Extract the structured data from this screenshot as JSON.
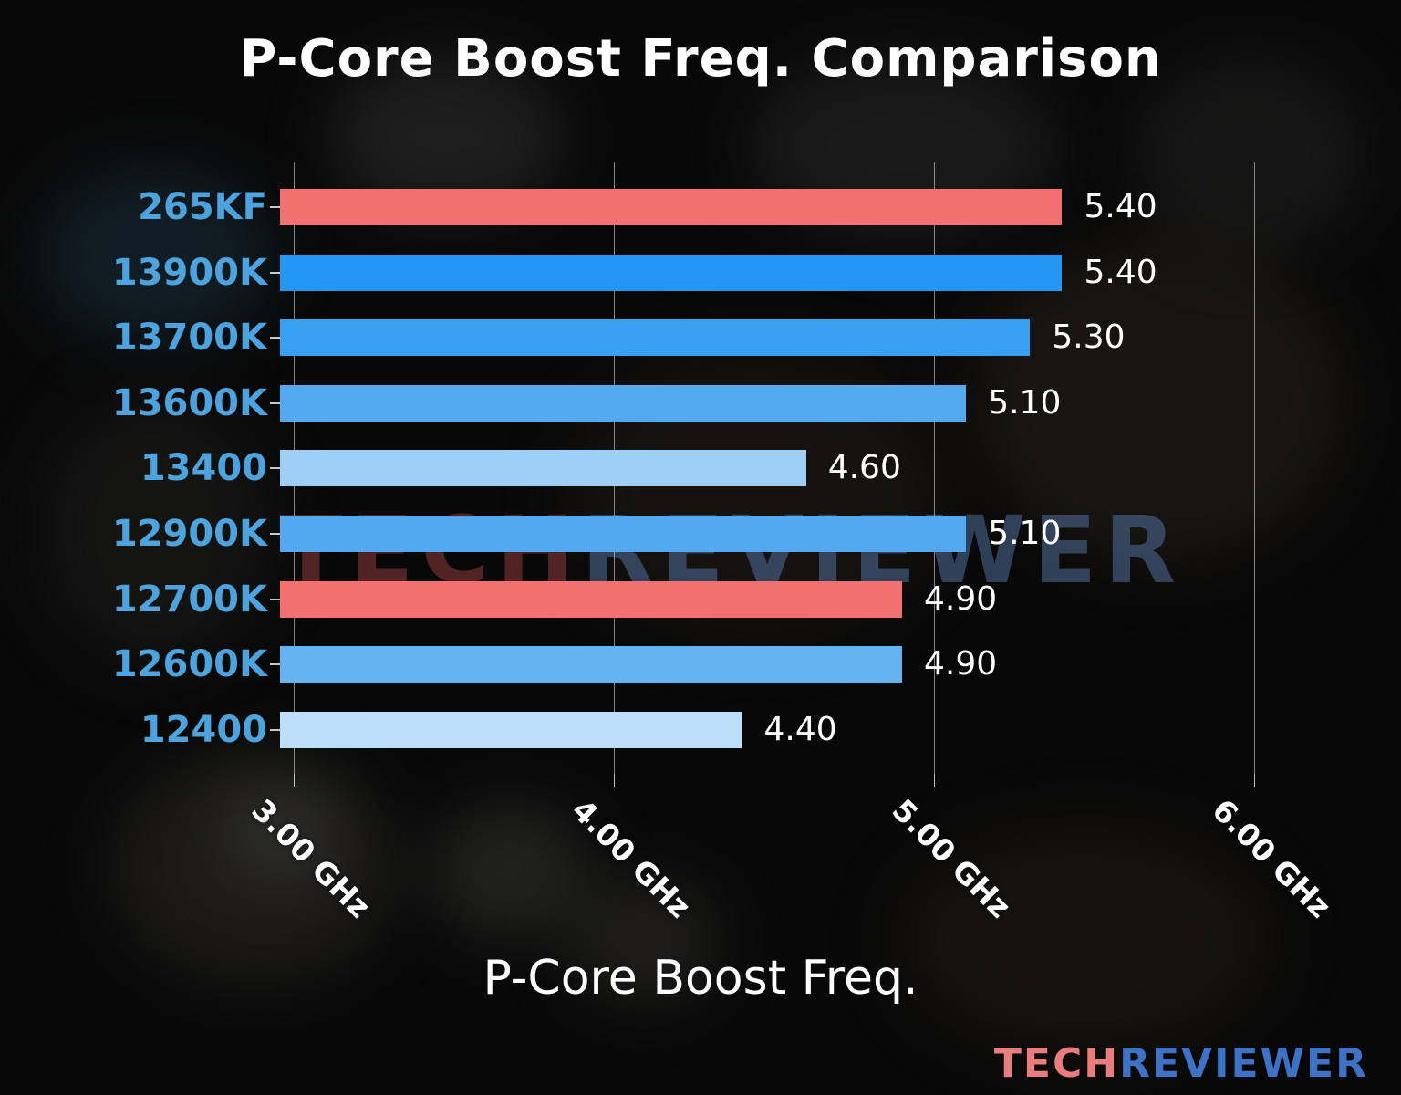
{
  "page": {
    "background_color": "#080808"
  },
  "chart_data": {
    "type": "bar",
    "orientation": "horizontal",
    "title": "P-Core Boost Freq. Comparison",
    "xlabel": "P-Core Boost Freq.",
    "ylabel": "",
    "categories": [
      "265KF",
      "13900K",
      "13700K",
      "13600K",
      "13400",
      "12900K",
      "12700K",
      "12600K",
      "12400"
    ],
    "values": [
      5.4,
      5.4,
      5.3,
      5.1,
      4.6,
      5.1,
      4.9,
      4.9,
      4.4
    ],
    "value_labels": [
      "5.40",
      "5.40",
      "5.30",
      "5.10",
      "4.60",
      "5.10",
      "4.90",
      "4.90",
      "4.40"
    ],
    "bar_colors": [
      "#F27070",
      "#2497F4",
      "#38A0F3",
      "#54AAF1",
      "#9FCEF6",
      "#52A9F1",
      "#F27070",
      "#66B3F2",
      "#BCDEF8"
    ],
    "highlight_color": "#F27070",
    "category_label_color": "#4DA3DD",
    "value_label_color": "#FFFFFF",
    "title_color": "#FFFFFF",
    "grid": true,
    "gridline_color": "rgba(235,235,235,0.55)",
    "x_ticks": [
      {
        "value": 3,
        "label": "3.00 GHz"
      },
      {
        "value": 4,
        "label": "4.00 GHz"
      },
      {
        "value": 5,
        "label": "5.00 GHz"
      },
      {
        "value": 6,
        "label": "6.00 GHz"
      }
    ],
    "xlim": [
      2.957,
      6.45
    ]
  },
  "watermark": {
    "tech": "TECH",
    "reviewer": "REVIEWER",
    "tech_color": "rgba(155,62,62,0.50)",
    "reviewer_color": "rgba(100,140,200,0.42)"
  },
  "logo": {
    "tech": "TECH",
    "reviewer": "REVIEWER",
    "tech_color": "#E97C7C",
    "reviewer_color": "#3E72C7"
  }
}
